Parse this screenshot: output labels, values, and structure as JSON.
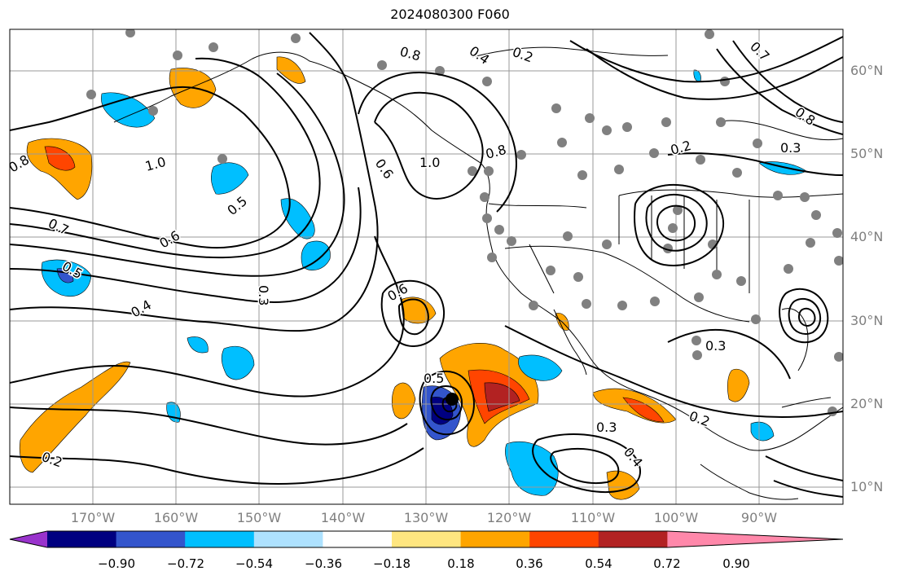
{
  "title": "2024080300 F060",
  "lat_labels": [
    "60°N",
    "50°N",
    "40°N",
    "30°N",
    "20°N",
    "10°N"
  ],
  "lon_labels": [
    "170°W",
    "160°W",
    "150°W",
    "140°W",
    "130°W",
    "120°W",
    "110°W",
    "100°W",
    "90°W"
  ],
  "colorbar": {
    "labels": [
      "−0.90",
      "−0.72",
      "−0.54",
      "−0.36",
      "−0.18",
      "0.18",
      "0.36",
      "0.54",
      "0.72",
      "0.90"
    ],
    "colors": [
      "#9933cc",
      "#000080",
      "#3355cc",
      "#00bfff",
      "#aee2ff",
      "#ffffff",
      "#ffe680",
      "#ffa500",
      "#ff4500",
      "#b22222",
      "#ff88aa"
    ]
  },
  "contour_labels": [
    {
      "text": "1.0"
    },
    {
      "text": "0.8"
    },
    {
      "text": "0.7"
    },
    {
      "text": "0.6"
    },
    {
      "text": "0.5"
    },
    {
      "text": "0.4"
    },
    {
      "text": "0.3"
    },
    {
      "text": "0.2"
    },
    {
      "text": "0.5"
    },
    {
      "text": "0.6"
    },
    {
      "text": "1.0"
    },
    {
      "text": "0.8"
    },
    {
      "text": "0.3"
    },
    {
      "text": "0.2"
    },
    {
      "text": "0.3"
    },
    {
      "text": "0.4"
    },
    {
      "text": "0.2"
    },
    {
      "text": "0.8"
    },
    {
      "text": "0.4"
    },
    {
      "text": "0.6"
    },
    {
      "text": "0.5"
    },
    {
      "text": "0.3"
    },
    {
      "text": "0.2"
    },
    {
      "text": "0.7"
    },
    {
      "text": "0.8"
    }
  ]
}
